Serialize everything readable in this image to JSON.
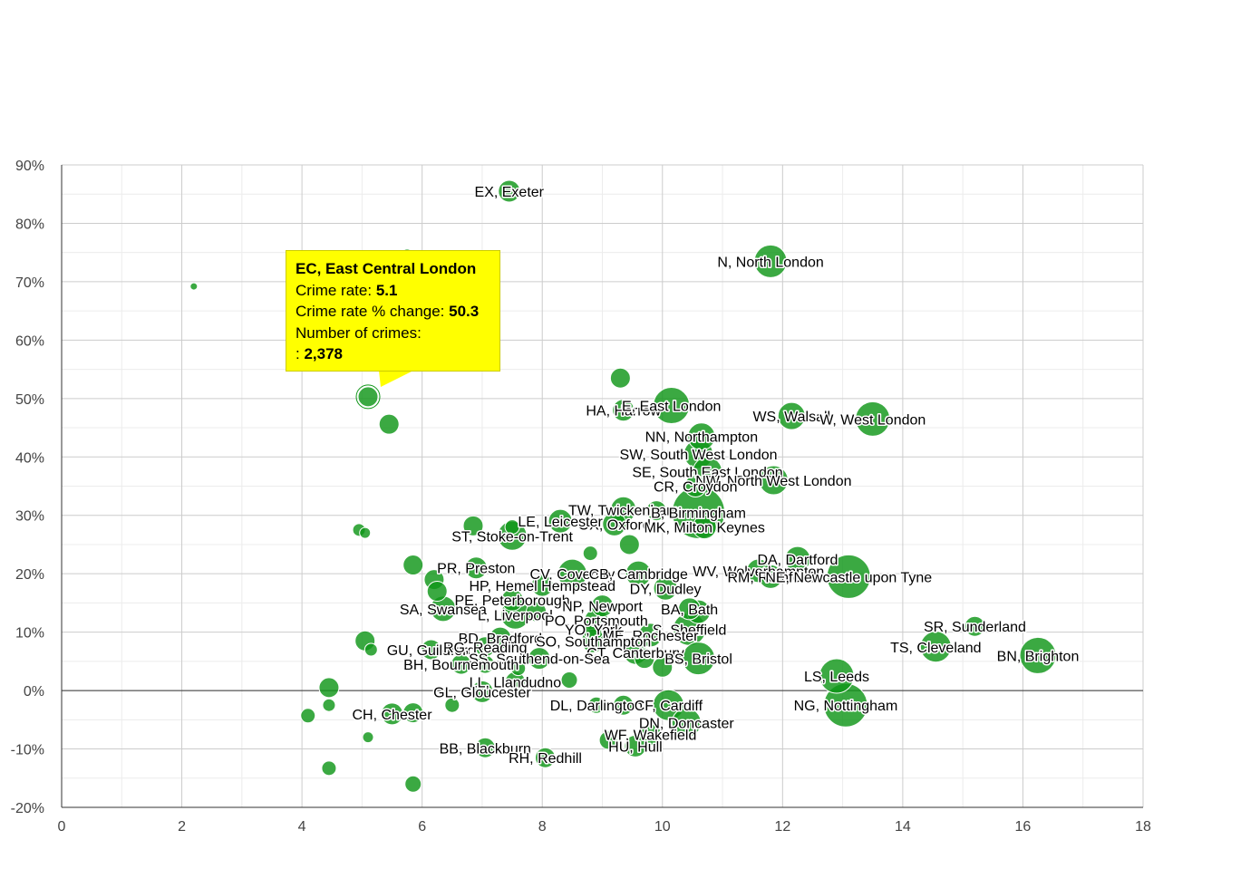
{
  "chart_data": {
    "type": "bubble",
    "title": "",
    "xlabel": "",
    "ylabel": "",
    "xlim": [
      0,
      18
    ],
    "ylim": [
      -20,
      90
    ],
    "x_ticks": [
      "0",
      "2",
      "4",
      "6",
      "8",
      "10",
      "12",
      "14",
      "16",
      "18"
    ],
    "y_ticks": [
      "90%",
      "80%",
      "70%",
      "60%",
      "50%",
      "40%",
      "30%",
      "20%",
      "10%",
      "0%",
      "-10%",
      "-20%"
    ],
    "x_tick_values": [
      0,
      2,
      4,
      6,
      8,
      10,
      12,
      14,
      16,
      18
    ],
    "y_tick_values": [
      90,
      80,
      70,
      60,
      50,
      40,
      30,
      20,
      10,
      0,
      -10,
      -20
    ],
    "grid": true,
    "color": "#109618",
    "points": [
      {
        "label": "EX, Exeter",
        "x": 7.45,
        "y": 85.5,
        "r": 12
      },
      {
        "label": "N, North London",
        "x": 11.8,
        "y": 73.5,
        "r": 18
      },
      {
        "label": "",
        "x": 5.75,
        "y": 74.5,
        "r": 7
      },
      {
        "label": "",
        "x": 2.2,
        "y": 69.2,
        "r": 4
      },
      {
        "label": "EC, East Central London",
        "x": 5.1,
        "y": 50.3,
        "r": 11
      },
      {
        "label": "",
        "x": 5.45,
        "y": 45.6,
        "r": 11
      },
      {
        "label": "",
        "x": 9.3,
        "y": 53.5,
        "r": 11
      },
      {
        "label": "HA, Harrow",
        "x": 9.35,
        "y": 48.0,
        "r": 12
      },
      {
        "label": "E, East London",
        "x": 10.15,
        "y": 48.8,
        "r": 20
      },
      {
        "label": "WS, Walsall",
        "x": 12.15,
        "y": 47.0,
        "r": 15
      },
      {
        "label": "W, West London",
        "x": 13.5,
        "y": 46.5,
        "r": 19
      },
      {
        "label": "NN, Northampton",
        "x": 10.65,
        "y": 43.5,
        "r": 15
      },
      {
        "label": "SW, South West London",
        "x": 10.6,
        "y": 40.5,
        "r": 16
      },
      {
        "label": "SE, South East London",
        "x": 10.75,
        "y": 37.5,
        "r": 16
      },
      {
        "label": "NW, North West London",
        "x": 11.85,
        "y": 36.0,
        "r": 16
      },
      {
        "label": "CR, Croydon",
        "x": 10.55,
        "y": 35.0,
        "r": 12
      },
      {
        "label": "TW, Twickenham",
        "x": 9.35,
        "y": 31.0,
        "r": 14
      },
      {
        "label": "B, Birmingham",
        "x": 10.6,
        "y": 30.5,
        "r": 29
      },
      {
        "label": "",
        "x": 9.9,
        "y": 30.8,
        "r": 11
      },
      {
        "label": "OX, Oxford",
        "x": 9.2,
        "y": 28.5,
        "r": 13
      },
      {
        "label": "MK, Milton Keynes",
        "x": 10.7,
        "y": 28.0,
        "r": 13
      },
      {
        "label": "LE, Leicester",
        "x": 8.3,
        "y": 29.0,
        "r": 13
      },
      {
        "label": "",
        "x": 9.45,
        "y": 25.0,
        "r": 11
      },
      {
        "label": "ST, Stoke-on-Trent",
        "x": 7.5,
        "y": 26.5,
        "r": 16
      },
      {
        "label": "",
        "x": 6.85,
        "y": 28.2,
        "r": 11
      },
      {
        "label": "",
        "x": 7.5,
        "y": 28.0,
        "r": 8
      },
      {
        "label": "",
        "x": 4.95,
        "y": 27.5,
        "r": 7
      },
      {
        "label": "",
        "x": 5.05,
        "y": 27.0,
        "r": 6
      },
      {
        "label": "",
        "x": 8.8,
        "y": 23.5,
        "r": 8
      },
      {
        "label": "DA, Dartford",
        "x": 12.25,
        "y": 22.5,
        "r": 14
      },
      {
        "label": "WV, Wolverhampton",
        "x": 11.6,
        "y": 20.5,
        "r": 13
      },
      {
        "label": "RM, Romford",
        "x": 11.8,
        "y": 19.5,
        "r": 13
      },
      {
        "label": "NE, Newcastle upon Tyne",
        "x": 13.1,
        "y": 19.5,
        "r": 24
      },
      {
        "label": "",
        "x": 5.85,
        "y": 21.5,
        "r": 11
      },
      {
        "label": "PR, Preston",
        "x": 6.9,
        "y": 21.0,
        "r": 12
      },
      {
        "label": "CV, Coventry",
        "x": 8.5,
        "y": 20.0,
        "r": 16
      },
      {
        "label": "CB, Cambridge",
        "x": 9.6,
        "y": 20.0,
        "r": 14
      },
      {
        "label": "DY, Dudley",
        "x": 10.05,
        "y": 17.5,
        "r": 13
      },
      {
        "label": "HP, Hemel Hempstead",
        "x": 8.0,
        "y": 18.0,
        "r": 12
      },
      {
        "label": "",
        "x": 6.2,
        "y": 19.0,
        "r": 11
      },
      {
        "label": "",
        "x": 6.25,
        "y": 17.0,
        "r": 11
      },
      {
        "label": "PE, Peterborough",
        "x": 7.5,
        "y": 15.5,
        "r": 12
      },
      {
        "label": "NP, Newport",
        "x": 9.0,
        "y": 14.5,
        "r": 12
      },
      {
        "label": "BA, Bath",
        "x": 10.45,
        "y": 14.0,
        "r": 12
      },
      {
        "label": "SA, Swansea",
        "x": 6.35,
        "y": 14.0,
        "r": 14
      },
      {
        "label": "L, Liverpool",
        "x": 7.55,
        "y": 13.0,
        "r": 16
      },
      {
        "label": "",
        "x": 7.9,
        "y": 13.5,
        "r": 11
      },
      {
        "label": "PO, Portsmouth",
        "x": 8.9,
        "y": 12.0,
        "r": 13
      },
      {
        "label": "",
        "x": 10.6,
        "y": 13.5,
        "r": 13
      },
      {
        "label": "YO, York",
        "x": 8.85,
        "y": 10.5,
        "r": 12
      },
      {
        "label": "S, Sheffield",
        "x": 10.45,
        "y": 10.5,
        "r": 18
      },
      {
        "label": "ME, Rochester",
        "x": 9.8,
        "y": 9.5,
        "r": 13
      },
      {
        "label": "BD, Bradford",
        "x": 7.3,
        "y": 9.0,
        "r": 12
      },
      {
        "label": "SO, Southampton",
        "x": 8.85,
        "y": 8.5,
        "r": 13
      },
      {
        "label": "CT, Canterbury",
        "x": 9.55,
        "y": 6.5,
        "r": 13
      },
      {
        "label": "",
        "x": 5.05,
        "y": 8.5,
        "r": 11
      },
      {
        "label": "",
        "x": 5.15,
        "y": 7.0,
        "r": 7
      },
      {
        "label": "GU, Guildford",
        "x": 6.15,
        "y": 7.0,
        "r": 11
      },
      {
        "label": "RG, Reading",
        "x": 7.05,
        "y": 7.5,
        "r": 11
      },
      {
        "label": "BS, Bristol",
        "x": 10.6,
        "y": 5.5,
        "r": 18
      },
      {
        "label": "SS, Southend-on-Sea",
        "x": 7.95,
        "y": 5.5,
        "r": 12
      },
      {
        "label": "",
        "x": 9.7,
        "y": 5.5,
        "r": 11
      },
      {
        "label": "BH, Bournemouth",
        "x": 6.65,
        "y": 4.5,
        "r": 11
      },
      {
        "label": "",
        "x": 7.05,
        "y": 4.5,
        "r": 10
      },
      {
        "label": "",
        "x": 7.6,
        "y": 3.8,
        "r": 8
      },
      {
        "label": "",
        "x": 10.0,
        "y": 4.0,
        "r": 11
      },
      {
        "label": "LL, Llandudno",
        "x": 7.55,
        "y": 1.5,
        "r": 11
      },
      {
        "label": "",
        "x": 8.45,
        "y": 1.8,
        "r": 9
      },
      {
        "label": "GL, Gloucester",
        "x": 7.0,
        "y": -0.2,
        "r": 12
      },
      {
        "label": "",
        "x": 4.45,
        "y": 0.5,
        "r": 11
      },
      {
        "label": "",
        "x": 4.45,
        "y": -2.5,
        "r": 7
      },
      {
        "label": "",
        "x": 6.5,
        "y": -2.5,
        "r": 8
      },
      {
        "label": "LS, Leeds",
        "x": 12.9,
        "y": 2.5,
        "r": 19
      },
      {
        "label": "NG, Nottingham",
        "x": 13.05,
        "y": -2.5,
        "r": 24
      },
      {
        "label": "DL, Darlington",
        "x": 8.9,
        "y": -2.5,
        "r": 9
      },
      {
        "label": "",
        "x": 9.35,
        "y": -2.5,
        "r": 11
      },
      {
        "label": "CF, Cardiff",
        "x": 10.1,
        "y": -2.5,
        "r": 17
      },
      {
        "label": "CH, Chester",
        "x": 5.5,
        "y": -4.0,
        "r": 12
      },
      {
        "label": "",
        "x": 5.85,
        "y": -3.8,
        "r": 11
      },
      {
        "label": "",
        "x": 4.1,
        "y": -4.3,
        "r": 8
      },
      {
        "label": "DN, Doncaster",
        "x": 10.4,
        "y": -5.5,
        "r": 16
      },
      {
        "label": "WF, Wakefield",
        "x": 9.8,
        "y": -7.5,
        "r": 12
      },
      {
        "label": "",
        "x": 9.1,
        "y": -8.5,
        "r": 10
      },
      {
        "label": "",
        "x": 5.1,
        "y": -8.0,
        "r": 6
      },
      {
        "label": "HU, Hull",
        "x": 9.55,
        "y": -9.5,
        "r": 12
      },
      {
        "label": "BB, Blackburn",
        "x": 7.05,
        "y": -9.8,
        "r": 11
      },
      {
        "label": "RH, Redhill",
        "x": 8.05,
        "y": -11.5,
        "r": 11
      },
      {
        "label": "SR, Sunderland",
        "x": 15.2,
        "y": 11.0,
        "r": 11
      },
      {
        "label": "TS, Cleveland",
        "x": 14.55,
        "y": 7.5,
        "r": 17
      },
      {
        "label": "BN, Brighton",
        "x": 16.25,
        "y": 6.0,
        "r": 20
      },
      {
        "label": "",
        "x": 4.45,
        "y": -13.3,
        "r": 8
      },
      {
        "label": "",
        "x": 5.85,
        "y": -16.0,
        "r": 9
      }
    ],
    "tooltip": {
      "title": "EC, East Central London",
      "crime_rate_label": "Crime rate:",
      "crime_rate_value": "5.1",
      "change_label": "Crime rate % change:",
      "change_value": "50.3",
      "count_label": "Number of crimes:",
      "count_prefix": ":",
      "count_value": "2,378"
    }
  }
}
